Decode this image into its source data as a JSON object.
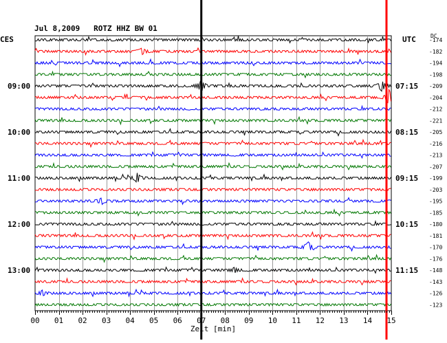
{
  "chart_data": {
    "type": "line",
    "title": "Jul 8,2009   ROTZ HHZ BW 01",
    "left_timezone": "CES",
    "right_timezone": "UTC",
    "dc_label": "DC",
    "xlabel": "Zeit [min]",
    "xlim": [
      0,
      15
    ],
    "xticks": [
      "00",
      "01",
      "02",
      "03",
      "04",
      "05",
      "06",
      "07",
      "08",
      "09",
      "10",
      "11",
      "12",
      "13",
      "14",
      "15"
    ],
    "grid": true,
    "left_hour_labels": [
      "09:00",
      "10:00",
      "11:00",
      "12:00",
      "13:00"
    ],
    "right_hour_labels": [
      "07:15",
      "08:15",
      "09:15",
      "10:15",
      "11:15"
    ],
    "hour_label_rows": [
      4,
      8,
      12,
      16,
      20
    ],
    "trace_colors": [
      "#000000",
      "#ff0000",
      "#0000ff",
      "#007700"
    ],
    "dc_offsets": [
      "-174",
      "-182",
      "-194",
      "-198",
      "-209",
      "-204",
      "-212",
      "-221",
      "-205",
      "-216",
      "-213",
      "-207",
      "-199",
      "-203",
      "-195",
      "-185",
      "-180",
      "-181",
      "-170",
      "-176",
      "-148",
      "-143",
      "-126",
      "-123"
    ],
    "vertical_markers": [
      {
        "x": 7.0,
        "color": "#000000"
      },
      {
        "x": 15.0,
        "color": "#ff0000"
      }
    ],
    "events": [
      {
        "trace": 1,
        "x": 4.5,
        "amp": 4
      },
      {
        "trace": 4,
        "x": 7.0,
        "amp": 8
      },
      {
        "trace": 4,
        "x": 14.6,
        "amp": 7
      },
      {
        "trace": 5,
        "x": 14.9,
        "amp": 10
      },
      {
        "trace": 12,
        "x": 4.3,
        "amp": 6
      },
      {
        "trace": 14,
        "x": 2.8,
        "amp": 4
      },
      {
        "trace": 18,
        "x": 11.5,
        "amp": 7
      },
      {
        "trace": 20,
        "x": 8.4,
        "amp": 3
      },
      {
        "trace": 22,
        "x": 0.3,
        "amp": 3
      }
    ]
  }
}
